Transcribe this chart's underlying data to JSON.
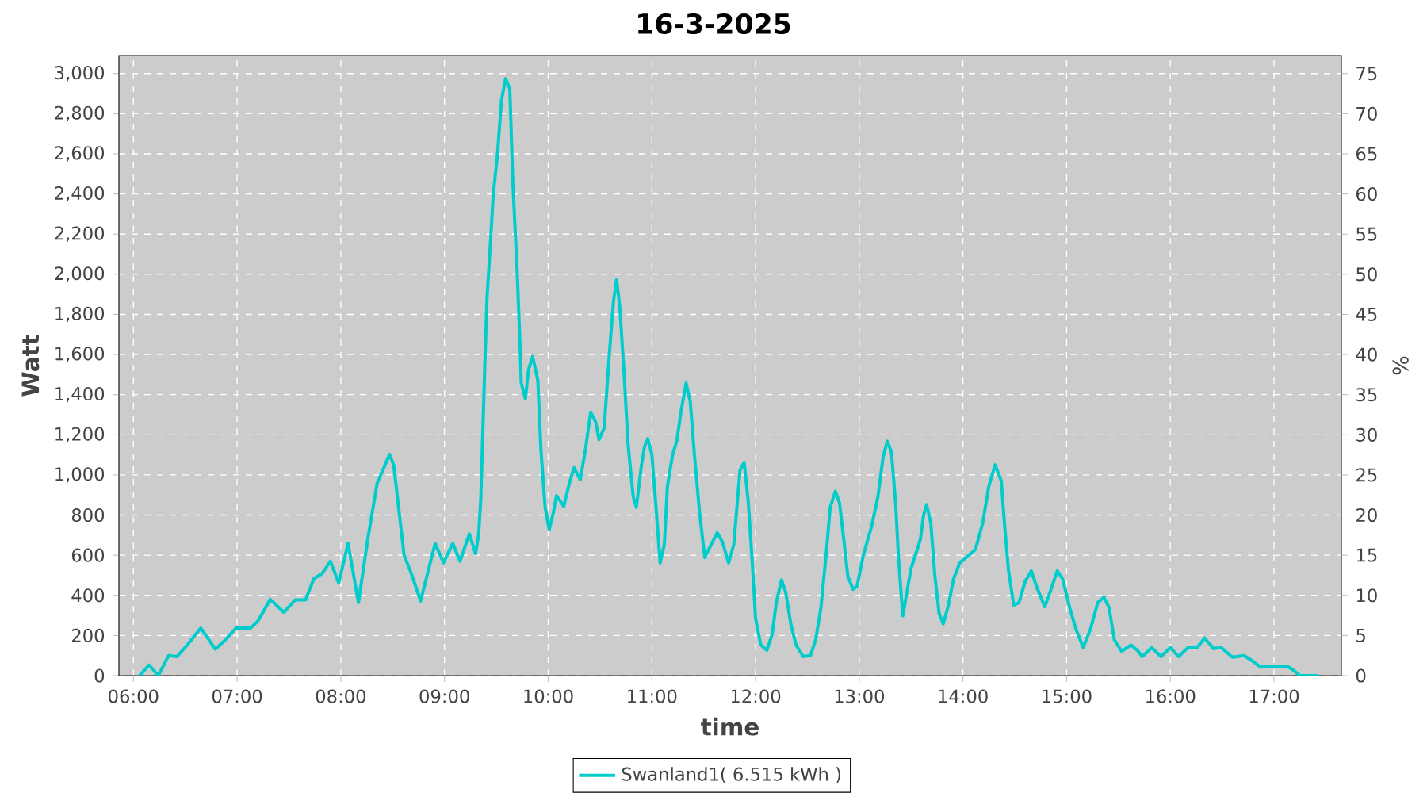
{
  "chart_data": {
    "type": "line",
    "title": "16-3-2025",
    "xlabel": "time",
    "ylabel": "Watt",
    "y2label": "%",
    "x": [
      6.06,
      6.15,
      6.24,
      6.34,
      6.42,
      6.52,
      6.65,
      6.79,
      6.89,
      6.99,
      7.13,
      7.2,
      7.32,
      7.45,
      7.56,
      7.66,
      7.74,
      7.82,
      7.9,
      7.98,
      8.07,
      8.17,
      8.26,
      8.35,
      8.47,
      8.51,
      8.61,
      8.68,
      8.77,
      8.91,
      8.99,
      9.08,
      9.15,
      9.24,
      9.3,
      9.33,
      9.35,
      9.39,
      9.41,
      9.44,
      9.47,
      9.51,
      9.55,
      9.59,
      9.63,
      9.66,
      9.7,
      9.73,
      9.74,
      9.78,
      9.81,
      9.85,
      9.9,
      9.93,
      9.97,
      10.01,
      10.05,
      10.08,
      10.15,
      10.21,
      10.25,
      10.31,
      10.36,
      10.41,
      10.46,
      10.49,
      10.54,
      10.59,
      10.63,
      10.66,
      10.69,
      10.73,
      10.77,
      10.82,
      10.85,
      10.9,
      10.93,
      10.96,
      11.0,
      11.04,
      11.08,
      11.12,
      11.15,
      11.2,
      11.24,
      11.28,
      11.33,
      11.37,
      11.41,
      11.46,
      11.51,
      11.56,
      11.63,
      11.68,
      11.74,
      11.79,
      11.85,
      11.89,
      11.93,
      11.97,
      12.0,
      12.05,
      12.11,
      12.16,
      12.2,
      12.25,
      12.29,
      12.34,
      12.39,
      12.46,
      12.53,
      12.58,
      12.63,
      12.68,
      12.72,
      12.77,
      12.81,
      12.85,
      12.89,
      12.94,
      12.98,
      13.04,
      13.12,
      13.18,
      13.23,
      13.27,
      13.31,
      13.35,
      13.38,
      13.42,
      13.46,
      13.5,
      13.55,
      13.59,
      13.62,
      13.65,
      13.69,
      13.73,
      13.77,
      13.81,
      13.86,
      13.91,
      13.97,
      14.06,
      14.12,
      14.19,
      14.25,
      14.31,
      14.37,
      14.4,
      14.44,
      14.49,
      14.54,
      14.6,
      14.66,
      14.71,
      14.79,
      14.85,
      14.91,
      14.96,
      15.03,
      15.09,
      15.16,
      15.23,
      15.3,
      15.36,
      15.41,
      15.46,
      15.53,
      15.62,
      15.68,
      15.73,
      15.82,
      15.91,
      16.0,
      16.08,
      16.17,
      16.26,
      16.33,
      16.42,
      16.49,
      16.6,
      16.71,
      16.79,
      16.87,
      16.94,
      17.12,
      17.17,
      17.25,
      17.43
    ],
    "series": [
      {
        "name": "Swanland1( 6.515 kWh )",
        "color": "#00cccc",
        "values": [
          0,
          53,
          0,
          100,
          95,
          153,
          237,
          132,
          180,
          237,
          237,
          272,
          380,
          316,
          377,
          377,
          483,
          509,
          570,
          461,
          659,
          364,
          680,
          957,
          1102,
          1050,
          601,
          509,
          372,
          659,
          562,
          659,
          570,
          707,
          607,
          707,
          878,
          1564,
          1880,
          2131,
          2395,
          2592,
          2869,
          2975,
          2922,
          2447,
          2025,
          1630,
          1458,
          1379,
          1524,
          1590,
          1472,
          1129,
          839,
          728,
          812,
          897,
          844,
          970,
          1036,
          976,
          1129,
          1313,
          1261,
          1176,
          1234,
          1603,
          1867,
          1973,
          1841,
          1524,
          1155,
          891,
          839,
          1050,
          1142,
          1181,
          1102,
          839,
          562,
          654,
          944,
          1102,
          1168,
          1313,
          1458,
          1366,
          1102,
          812,
          588,
          641,
          712,
          667,
          562,
          654,
          1023,
          1063,
          865,
          549,
          285,
          153,
          127,
          206,
          364,
          477,
          417,
          258,
          153,
          95,
          100,
          179,
          338,
          601,
          839,
          918,
          860,
          680,
          496,
          430,
          448,
          601,
          746,
          891,
          1089,
          1168,
          1115,
          865,
          575,
          298,
          417,
          535,
          614,
          680,
          799,
          852,
          759,
          496,
          311,
          258,
          351,
          483,
          562,
          601,
          628,
          759,
          944,
          1050,
          970,
          759,
          522,
          351,
          364,
          469,
          522,
          443,
          343,
          430,
          522,
          483,
          338,
          232,
          140,
          232,
          364,
          390,
          338,
          179,
          121,
          153,
          127,
          95,
          140,
          95,
          140,
          95,
          140,
          140,
          187,
          134,
          140,
          92,
          100,
          74,
          42,
          47,
          47,
          34,
          0,
          0
        ]
      }
    ],
    "xlim": [
      5.86,
      17.65
    ],
    "ylim": [
      0,
      3090
    ],
    "y2lim": [
      0,
      77.25
    ],
    "xticks": [
      {
        "value": 6,
        "label": "06:00"
      },
      {
        "value": 7,
        "label": "07:00"
      },
      {
        "value": 8,
        "label": "08:00"
      },
      {
        "value": 9,
        "label": "09:00"
      },
      {
        "value": 10,
        "label": "10:00"
      },
      {
        "value": 11,
        "label": "11:00"
      },
      {
        "value": 12,
        "label": "12:00"
      },
      {
        "value": 13,
        "label": "13:00"
      },
      {
        "value": 14,
        "label": "14:00"
      },
      {
        "value": 15,
        "label": "15:00"
      },
      {
        "value": 16,
        "label": "16:00"
      },
      {
        "value": 17,
        "label": "17:00"
      }
    ],
    "yticks": [
      0,
      200,
      400,
      600,
      800,
      {
        "value": 1000,
        "label": "1,000"
      },
      {
        "value": 1200,
        "label": "1,200"
      },
      {
        "value": 1400,
        "label": "1,400"
      },
      {
        "value": 1600,
        "label": "1,600"
      },
      {
        "value": 1800,
        "label": "1,800"
      },
      {
        "value": 2000,
        "label": "2,000"
      },
      {
        "value": 2200,
        "label": "2,200"
      },
      {
        "value": 2400,
        "label": "2,400"
      },
      {
        "value": 2600,
        "label": "2,600"
      },
      {
        "value": 2800,
        "label": "2,800"
      },
      {
        "value": 3000,
        "label": "3,000"
      }
    ],
    "y2ticks": [
      0,
      5,
      10,
      15,
      20,
      25,
      30,
      35,
      40,
      45,
      50,
      55,
      60,
      65,
      70,
      75
    ],
    "grid": true,
    "legend": "bottom"
  }
}
